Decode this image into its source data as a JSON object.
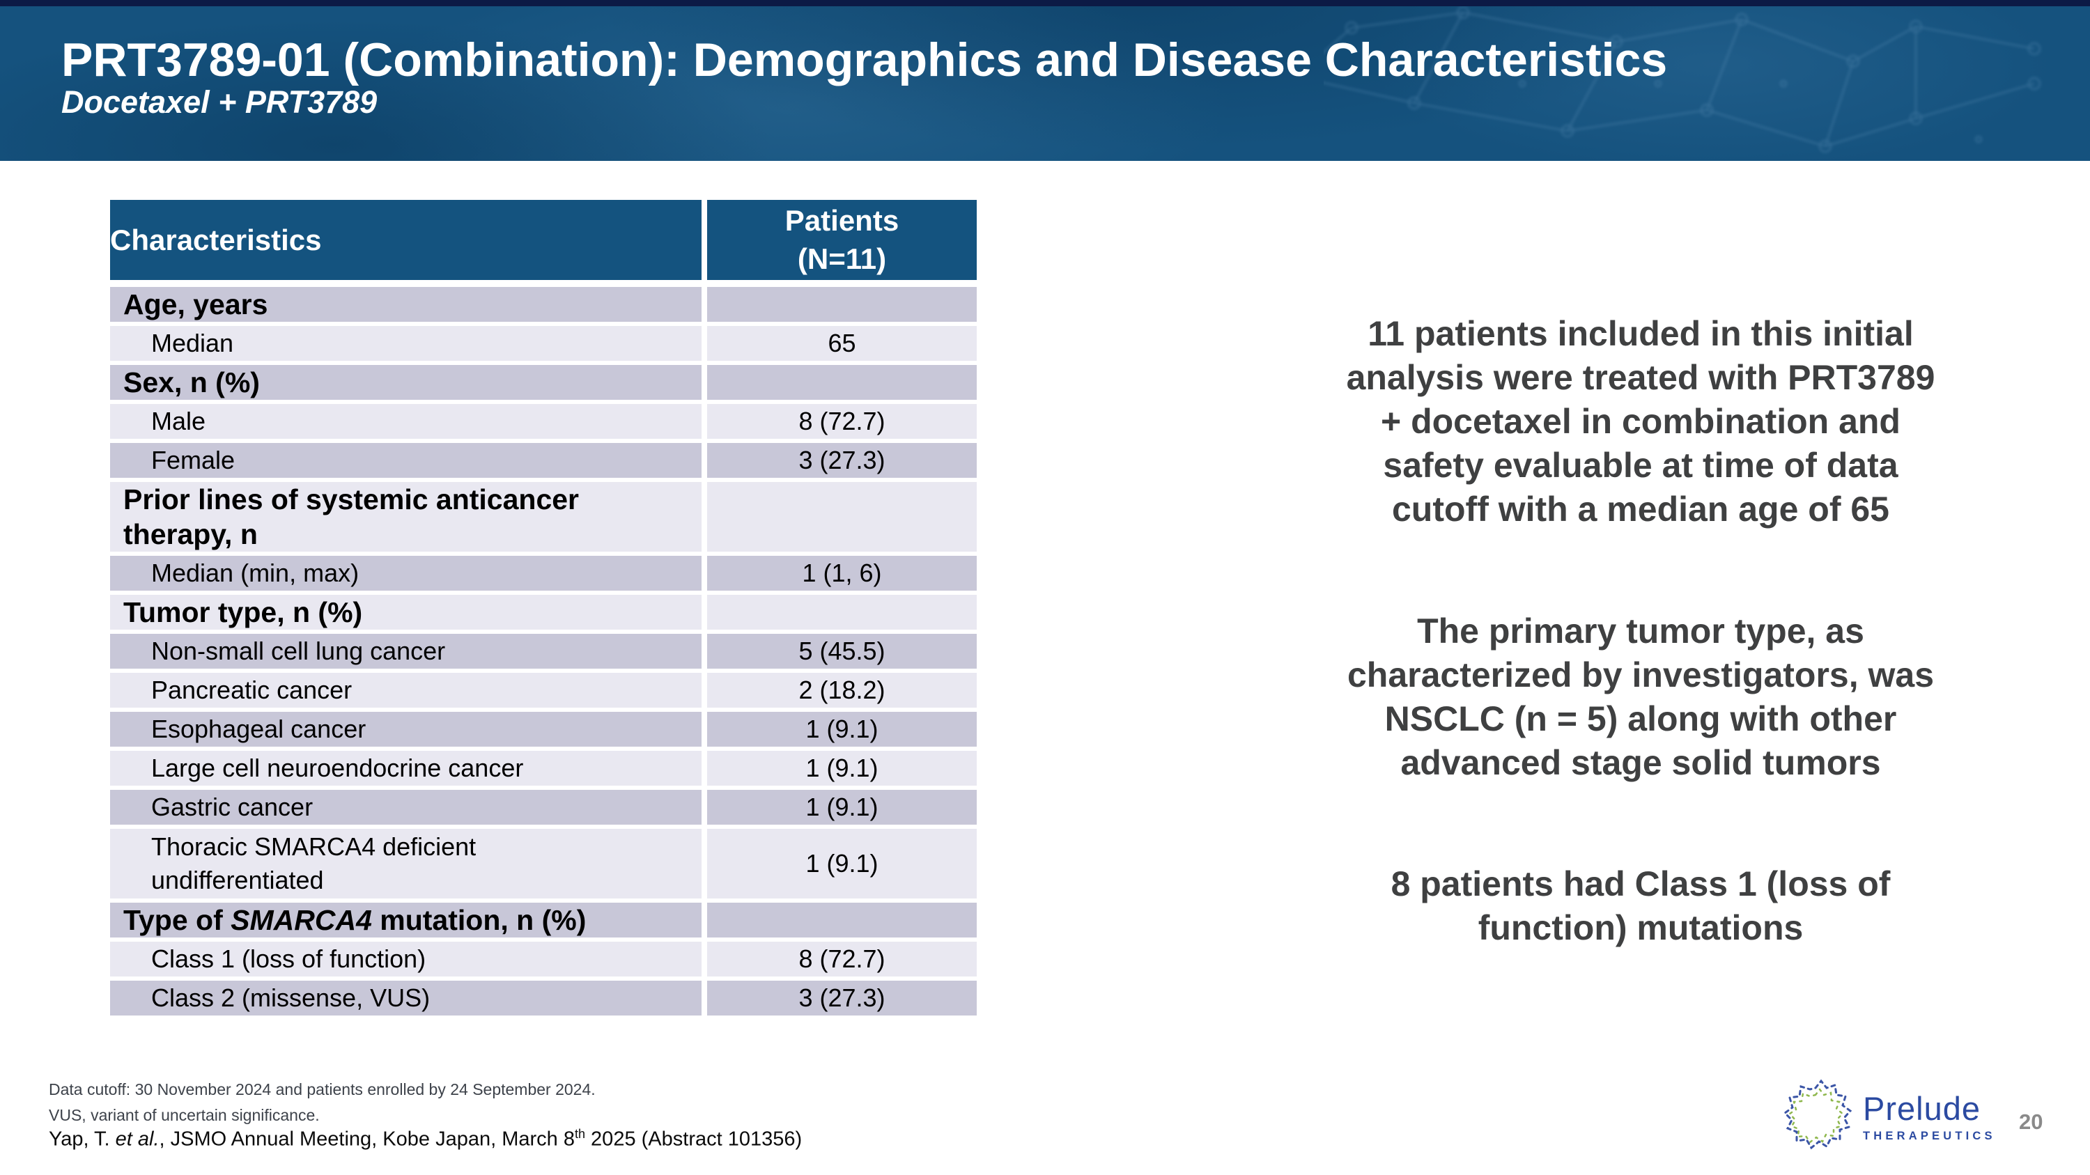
{
  "slide": {
    "title": "PRT3789-01 (Combination): Demographics and Disease Characteristics",
    "subtitle": "Docetaxel + PRT3789",
    "page_number": "20"
  },
  "table": {
    "header": {
      "col1": "Characteristics",
      "col2_lines": [
        "Patients",
        "(N=11)"
      ]
    },
    "rows": [
      {
        "label": "Age, years",
        "value": "",
        "category": true
      },
      {
        "label": "Median",
        "value": "65"
      },
      {
        "label": "Sex, n (%)",
        "value": "",
        "category": true
      },
      {
        "label": "Male",
        "value": "8 (72.7)"
      },
      {
        "label": "Female",
        "value": "3 (27.3)"
      },
      {
        "label": "Prior lines of systemic anticancer\ntherapy, n",
        "value": "",
        "category": true,
        "two_line": true
      },
      {
        "label": "Median (min, max)",
        "value": "1 (1, 6)"
      },
      {
        "label": "Tumor type, n (%)",
        "value": "",
        "category": true
      },
      {
        "label": "Non-small cell lung cancer",
        "value": "5 (45.5)"
      },
      {
        "label": "Pancreatic cancer",
        "value": "2 (18.2)"
      },
      {
        "label": "Esophageal cancer",
        "value": "1 (9.1)"
      },
      {
        "label": "Large cell neuroendocrine cancer",
        "value": "1 (9.1)"
      },
      {
        "label": "Gastric cancer",
        "value": "1 (9.1)"
      },
      {
        "label": "Thoracic SMARCA4 deficient\nundifferentiated",
        "value": "1 (9.1)",
        "two_line": true
      },
      {
        "label_parts": [
          {
            "t": "Type of "
          },
          {
            "t": "SMARCA4",
            "italic": true
          },
          {
            "t": " mutation, n (%)"
          }
        ],
        "value": "",
        "category": true
      },
      {
        "label": "Class 1 (loss of function)",
        "value": "8 (72.7)"
      },
      {
        "label": "Class 2 (missense, VUS)",
        "value": "3 (27.3)"
      }
    ],
    "shade_colors": {
      "dark": "#c8c7d8",
      "light": "#e9e8f1",
      "header": "#14537f"
    }
  },
  "highlights": [
    {
      "lines": [
        "11 patients included in this initial",
        "analysis were treated with PRT3789",
        "+ docetaxel in combination and",
        "safety evaluable at time of data",
        "cutoff with a median age of 65"
      ]
    },
    {
      "lines": [
        "The primary tumor type, as",
        "characterized by investigators, was",
        "NSCLC (n = 5) along with other",
        "advanced stage solid tumors"
      ]
    },
    {
      "lines": [
        "8 patients had Class 1 (loss of",
        "function) mutations"
      ]
    }
  ],
  "footnotes": {
    "line1": "Data cutoff: 30 November 2024 and patients enrolled by 24 September 2024.",
    "line2": "VUS, variant of uncertain significance.",
    "citation_parts": [
      {
        "t": "Yap, T. "
      },
      {
        "t": "et al.",
        "italic": true
      },
      {
        "t": ", JSMO Annual Meeting, Kobe Japan, March 8"
      },
      {
        "t": "th",
        "sup": true
      },
      {
        "t": " 2025 (Abstract 101356)"
      }
    ]
  },
  "logo": {
    "name": "Prelude",
    "sub": "THERAPEUTICS",
    "brand_color": "#2b4aa1"
  }
}
